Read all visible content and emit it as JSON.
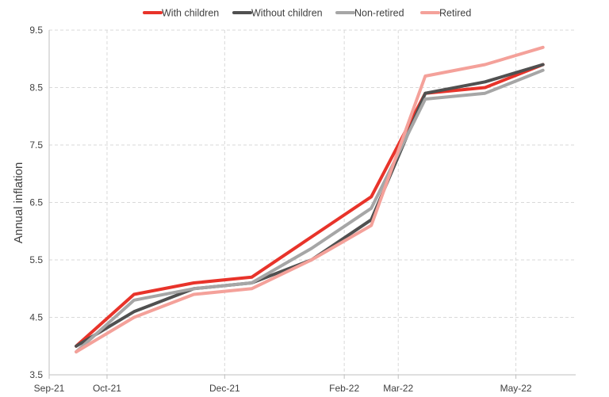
{
  "chart_data": {
    "type": "line",
    "title": "",
    "xlabel": "",
    "ylabel": "Annual inflation",
    "ylim": [
      3.5,
      9.5
    ],
    "yticks": [
      3.5,
      4.5,
      5.5,
      6.5,
      7.5,
      8.5,
      9.5
    ],
    "xlim": [
      "2021-09-01",
      "2022-06-01"
    ],
    "xticks": [
      "Sep-21",
      "Oct-21",
      "Dec-21",
      "Feb-22",
      "Mar-22",
      "May-22"
    ],
    "x": [
      "2021-09-15",
      "2021-10-15",
      "2021-11-15",
      "2021-12-15",
      "2022-01-15",
      "2022-02-15",
      "2022-03-15",
      "2022-04-15",
      "2022-05-15"
    ],
    "grid": true,
    "legend_position": "top",
    "series": [
      {
        "name": "With children",
        "color": "#e8332a",
        "values": [
          4.0,
          4.9,
          5.1,
          5.2,
          5.9,
          6.6,
          8.4,
          8.5,
          8.9
        ]
      },
      {
        "name": "Without children",
        "color": "#505050",
        "values": [
          4.0,
          4.6,
          5.0,
          5.1,
          5.5,
          6.2,
          8.4,
          8.6,
          8.9
        ]
      },
      {
        "name": "Non-retired",
        "color": "#a6a6a6",
        "values": [
          3.9,
          4.8,
          5.0,
          5.1,
          5.7,
          6.4,
          8.3,
          8.4,
          8.8
        ]
      },
      {
        "name": "Retired",
        "color": "#f4a19a",
        "values": [
          3.9,
          4.5,
          4.9,
          5.0,
          5.5,
          6.1,
          8.7,
          8.9,
          9.2
        ]
      }
    ]
  }
}
